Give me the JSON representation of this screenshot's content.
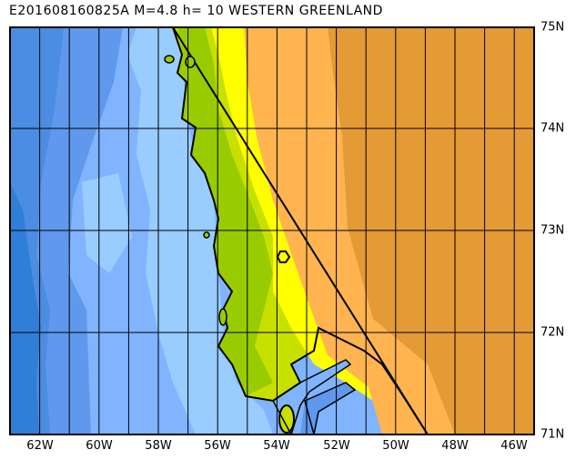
{
  "title": "E201608160825A M=4.8 h= 10 WESTERN GREENLAND",
  "x_axis_labels": [
    "62W",
    "60W",
    "58W",
    "56W",
    "54W",
    "52W",
    "50W",
    "48W",
    "46W"
  ],
  "y_axis_labels": [
    "75N",
    "74N",
    "73N",
    "72N",
    "71N"
  ],
  "colors": {
    "ocean_deepest": "#2f7fd9",
    "ocean_deep": "#4a8de2",
    "ocean_mid": "#5f98ec",
    "ocean_shallow": "#80b4ff",
    "ocean_shelf": "#99ccff",
    "lowland_green": "#99cc00",
    "land_yellowgreen": "#c8e000",
    "land_yellow": "#ffff00",
    "ice_orange": "#ffb44f",
    "ice_dark_orange": "#e49a35"
  }
}
